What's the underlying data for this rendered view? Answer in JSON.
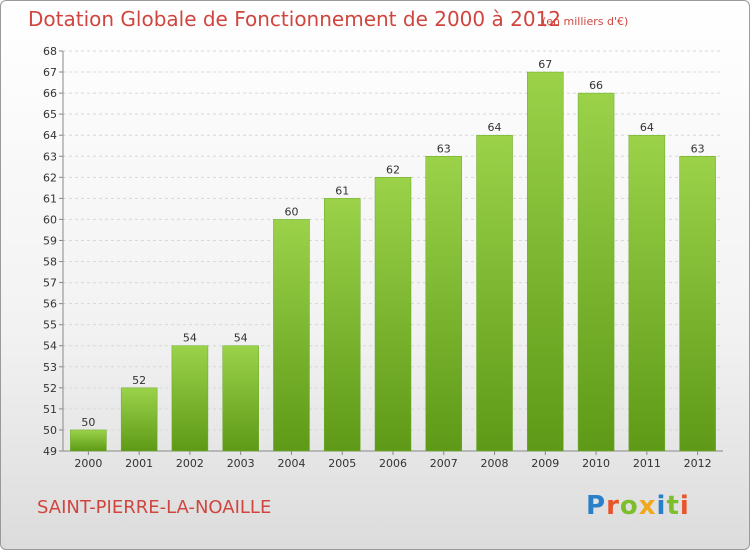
{
  "title": "Dotation Globale de Fonctionnement de 2000 à 2012",
  "subtitle": "(en milliers d'€)",
  "commune": "SAINT-PIERRE-LA-NOAILLE",
  "logo": {
    "text": "Proxiti",
    "letters": [
      {
        "ch": "P",
        "color": "#2a7fc9"
      },
      {
        "ch": "r",
        "color": "#e8542a"
      },
      {
        "ch": "o",
        "color": "#7cbf2a"
      },
      {
        "ch": "x",
        "color": "#f0a81e"
      },
      {
        "ch": "i",
        "color": "#2a7fc9"
      },
      {
        "ch": "t",
        "color": "#7cbf2a"
      },
      {
        "ch": "i",
        "color": "#e8542a"
      }
    ]
  },
  "colors": {
    "title": "#d0463f",
    "bar_top": "#9bd24a",
    "bar_bottom": "#5e9a17",
    "grid": "#d8d8d8"
  },
  "chart_data": {
    "type": "bar",
    "title": "Dotation Globale de Fonctionnement de 2000 à 2012",
    "subtitle": "(en milliers d'€)",
    "categories": [
      "2000",
      "2001",
      "2002",
      "2003",
      "2004",
      "2005",
      "2006",
      "2007",
      "2008",
      "2009",
      "2010",
      "2011",
      "2012"
    ],
    "values": [
      50,
      52,
      54,
      54,
      60,
      61,
      62,
      63,
      64,
      67,
      66,
      64,
      63
    ],
    "ylim": [
      49,
      68
    ],
    "yticks": [
      49,
      50,
      51,
      52,
      53,
      54,
      55,
      56,
      57,
      58,
      59,
      60,
      61,
      62,
      63,
      64,
      65,
      66,
      67,
      68
    ],
    "grid": true,
    "xlabel": "",
    "ylabel": ""
  }
}
